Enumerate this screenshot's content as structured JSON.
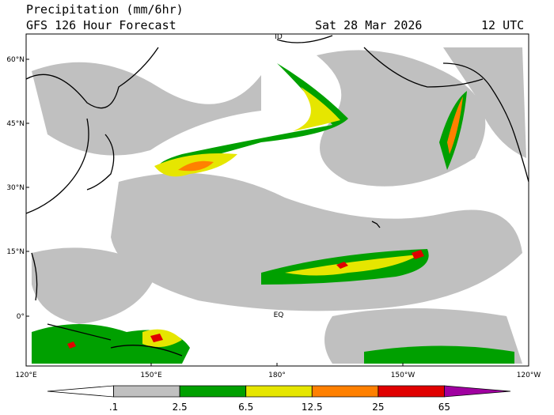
{
  "header": {
    "title": "Precipitation (mm/6hr)",
    "subtitle": "GFS 126 Hour Forecast",
    "valid_date": "Sat 28 Mar 2026",
    "valid_time": "12 UTC"
  },
  "map": {
    "lat_labels": [
      "60°N",
      "45°N",
      "30°N",
      "15°N",
      "0°"
    ],
    "lon_labels": [
      "120°E",
      "150°E",
      "180°",
      "150°W",
      "120°W"
    ],
    "annotations": [
      "ID",
      "EQ"
    ]
  },
  "legend": {
    "labels": [
      ".1",
      "2.5",
      "6.5",
      "12.5",
      "25",
      "65"
    ],
    "colors": [
      "#ffffff",
      "#c0c0c0",
      "#00a000",
      "#e6e600",
      "#ff8000",
      "#e00000",
      "#a000a0"
    ]
  }
}
